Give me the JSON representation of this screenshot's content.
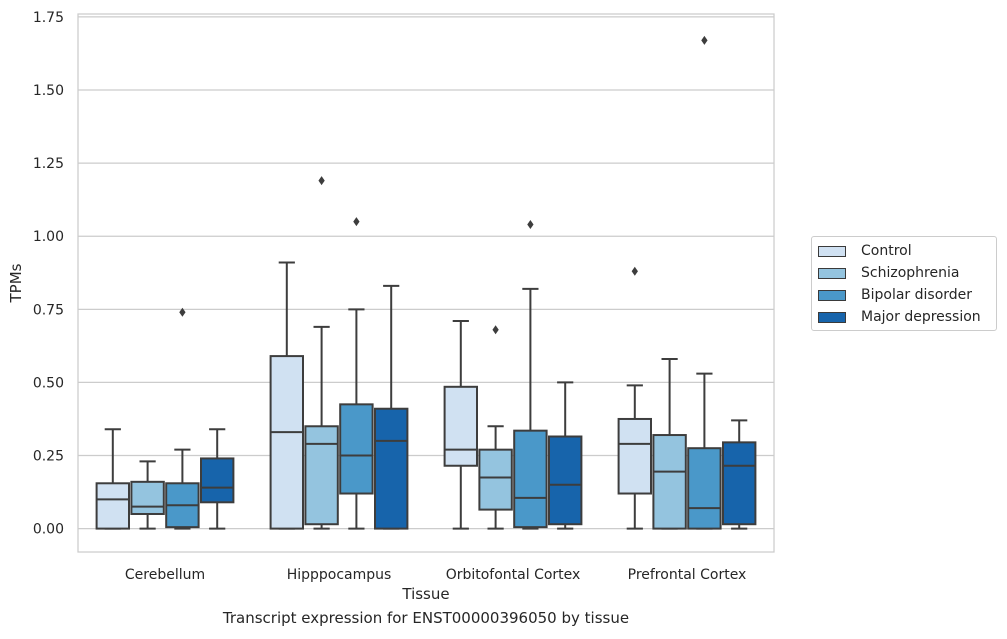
{
  "chart_data": {
    "type": "box",
    "xlabel": "Tissue",
    "ylabel": "TPMs",
    "caption": "Transcript expression for ENST00000396050 by tissue",
    "categories": [
      "Cerebellum",
      "Hipppocampus",
      "Orbitofontal Cortex",
      "Prefrontal Cortex"
    ],
    "ylim": [
      -0.08,
      1.76
    ],
    "yticks": [
      0.0,
      0.25,
      0.5,
      0.75,
      1.0,
      1.25,
      1.5,
      1.75
    ],
    "ytick_labels": [
      "0.00",
      "0.25",
      "0.50",
      "0.75",
      "1.00",
      "1.25",
      "1.50",
      "1.75"
    ],
    "grid": "horizontal",
    "legend_position": "outside-right",
    "series": [
      {
        "name": "Control",
        "color": "#d0e1f2",
        "boxes": [
          {
            "min": 0.0,
            "q1": 0.0,
            "median": 0.1,
            "q3": 0.155,
            "max": 0.34,
            "outliers": []
          },
          {
            "min": 0.0,
            "q1": 0.0,
            "median": 0.33,
            "q3": 0.59,
            "max": 0.91,
            "outliers": []
          },
          {
            "min": 0.0,
            "q1": 0.215,
            "median": 0.27,
            "q3": 0.485,
            "max": 0.71,
            "outliers": []
          },
          {
            "min": 0.0,
            "q1": 0.12,
            "median": 0.29,
            "q3": 0.375,
            "max": 0.49,
            "outliers": [
              0.88
            ]
          }
        ]
      },
      {
        "name": "Schizophrenia",
        "color": "#94c4df",
        "boxes": [
          {
            "min": 0.0,
            "q1": 0.05,
            "median": 0.075,
            "q3": 0.16,
            "max": 0.23,
            "outliers": []
          },
          {
            "min": 0.0,
            "q1": 0.015,
            "median": 0.29,
            "q3": 0.35,
            "max": 0.69,
            "outliers": [
              1.19
            ]
          },
          {
            "min": 0.0,
            "q1": 0.065,
            "median": 0.175,
            "q3": 0.27,
            "max": 0.35,
            "outliers": [
              0.68
            ]
          },
          {
            "min": 0.0,
            "q1": 0.0,
            "median": 0.195,
            "q3": 0.32,
            "max": 0.58,
            "outliers": []
          }
        ]
      },
      {
        "name": "Bipolar disorder",
        "color": "#4a98c9",
        "boxes": [
          {
            "min": 0.0,
            "q1": 0.005,
            "median": 0.08,
            "q3": 0.155,
            "max": 0.27,
            "outliers": [
              0.74
            ]
          },
          {
            "min": 0.0,
            "q1": 0.12,
            "median": 0.25,
            "q3": 0.425,
            "max": 0.75,
            "outliers": [
              1.05
            ]
          },
          {
            "min": 0.0,
            "q1": 0.005,
            "median": 0.105,
            "q3": 0.335,
            "max": 0.82,
            "outliers": [
              1.04
            ]
          },
          {
            "min": 0.0,
            "q1": 0.0,
            "median": 0.07,
            "q3": 0.275,
            "max": 0.53,
            "outliers": [
              1.67
            ]
          }
        ]
      },
      {
        "name": "Major depression",
        "color": "#1764ab",
        "boxes": [
          {
            "min": 0.0,
            "q1": 0.09,
            "median": 0.14,
            "q3": 0.24,
            "max": 0.34,
            "outliers": []
          },
          {
            "min": 0.0,
            "q1": 0.0,
            "median": 0.3,
            "q3": 0.41,
            "max": 0.83,
            "outliers": []
          },
          {
            "min": 0.0,
            "q1": 0.015,
            "median": 0.15,
            "q3": 0.315,
            "max": 0.5,
            "outliers": []
          },
          {
            "min": 0.0,
            "q1": 0.015,
            "median": 0.215,
            "q3": 0.295,
            "max": 0.37,
            "outliers": []
          }
        ]
      }
    ]
  }
}
